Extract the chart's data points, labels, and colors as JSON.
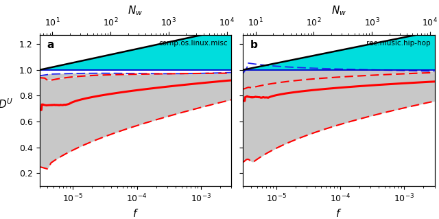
{
  "f_min": 3e-06,
  "f_max": 0.003,
  "Nw_min": 6,
  "Nw_max": 12000,
  "ylim": [
    0.1,
    1.27
  ],
  "yticks": [
    0.2,
    0.4,
    0.6,
    0.8,
    1.0,
    1.2
  ],
  "panel_a_label": "comp.os.linux.misc",
  "panel_b_label": "rec.music.hip-hop",
  "panel_a_tag": "a",
  "panel_b_tag": "b",
  "gray_fill_color": "#c8c8c8",
  "cyan_fill_color": "#00dddd",
  "red_color": "#ff0000",
  "blue_solid_color": "#0000cc",
  "blue_dashed_color": "#2222ee",
  "black_color": "#000000",
  "figsize": [
    6.4,
    3.19
  ],
  "dpi": 100
}
